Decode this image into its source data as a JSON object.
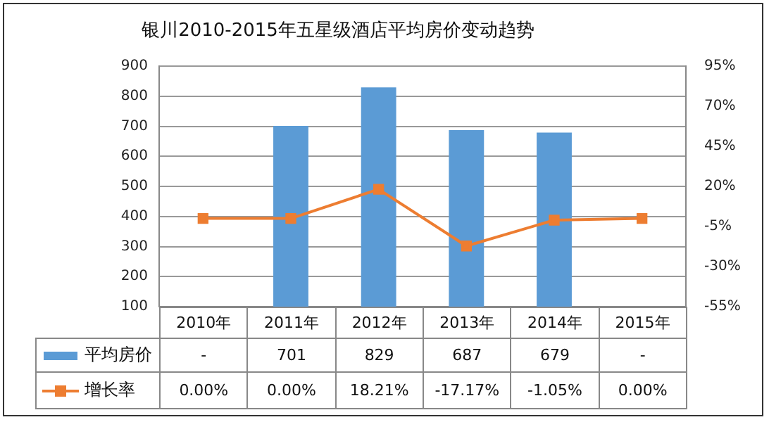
{
  "chart_data": {
    "type": "bar",
    "title": "银川2010-2015年五星级酒店平均房价变动趋势",
    "categories": [
      "2010年",
      "2011年",
      "2012年",
      "2013年",
      "2014年",
      "2015年"
    ],
    "series": [
      {
        "name": "平均房价",
        "color": "#5b9bd5",
        "values": [
          null,
          701,
          829,
          687,
          679,
          null
        ],
        "value_labels": [
          "-",
          "701",
          "829",
          "687",
          "679",
          "-"
        ]
      },
      {
        "name": "增长率",
        "type": "line",
        "axis": "y2",
        "color": "#ed7d31",
        "values": [
          0,
          0,
          18.21,
          -17.17,
          -1.05,
          0
        ],
        "value_labels": [
          "0.00%",
          "0.00%",
          "18.21%",
          "-17.17%",
          "-1.05%",
          "0.00%"
        ]
      }
    ],
    "ylim": [
      100,
      900
    ],
    "yticks": [
      100,
      200,
      300,
      400,
      500,
      600,
      700,
      800,
      900
    ],
    "y2lim": [
      -55,
      95
    ],
    "y2ticks": [
      {
        "value": -55,
        "label": "-55%"
      },
      {
        "value": -30,
        "label": "-30%"
      },
      {
        "value": -5,
        "label": "-5%"
      },
      {
        "value": 20,
        "label": "20%"
      },
      {
        "value": 45,
        "label": "45%"
      },
      {
        "value": 70,
        "label": "70%"
      },
      {
        "value": 95,
        "label": "95%"
      }
    ],
    "grid": "y",
    "legend": "bottom",
    "marker": "square",
    "line_style": "solid",
    "data_labels": true
  }
}
